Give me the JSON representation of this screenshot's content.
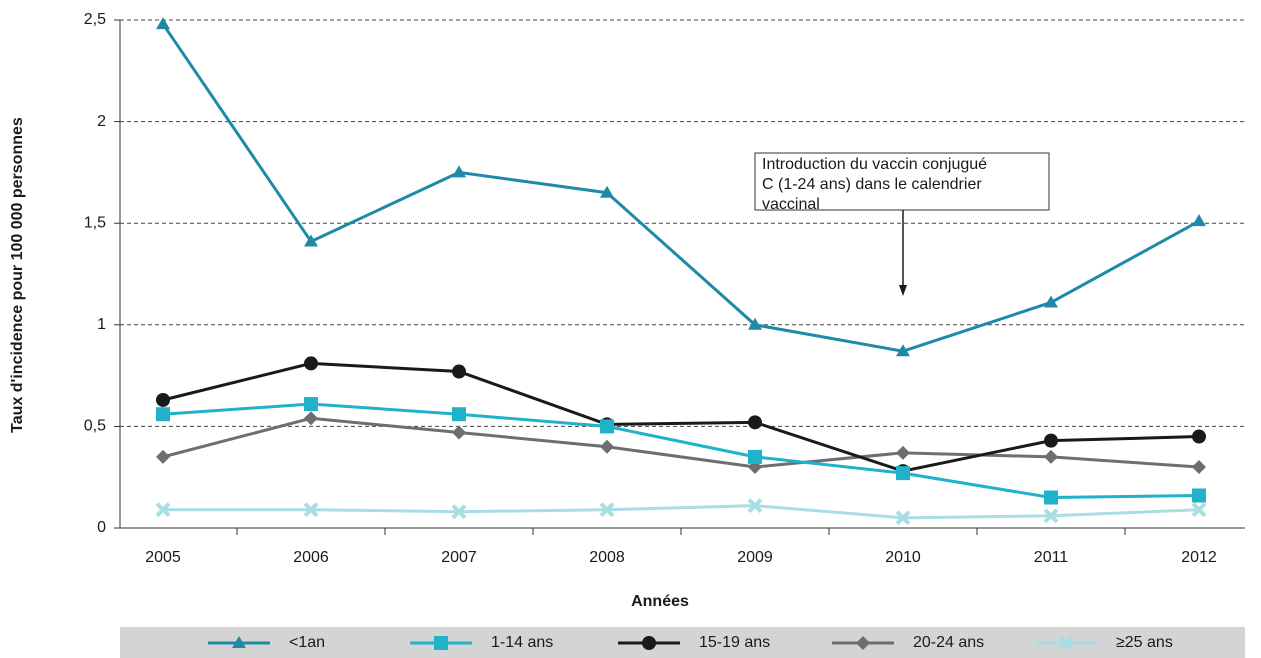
{
  "chart_data": {
    "type": "line",
    "y_label": "Taux d'incidence pour 100 000 personnes",
    "x_label": "Années",
    "categories": [
      "2005",
      "2006",
      "2007",
      "2008",
      "2009",
      "2010",
      "2011",
      "2012"
    ],
    "series": [
      {
        "name": "<1an",
        "color": "#1f8aa8",
        "marker": "triangle",
        "values": [
          2.48,
          1.41,
          1.75,
          1.65,
          1.0,
          0.87,
          1.11,
          1.51
        ]
      },
      {
        "name": "1-14 ans",
        "color": "#1fb2c8",
        "marker": "square",
        "values": [
          0.56,
          0.61,
          0.56,
          0.5,
          0.35,
          0.27,
          0.15,
          0.16
        ]
      },
      {
        "name": "15-19 ans",
        "color": "#1a1a1a",
        "marker": "circle",
        "values": [
          0.63,
          0.81,
          0.77,
          0.51,
          0.52,
          0.28,
          0.43,
          0.45
        ]
      },
      {
        "name": "20-24 ans",
        "color": "#6d6e71",
        "marker": "diamond",
        "values": [
          0.35,
          0.54,
          0.47,
          0.4,
          0.3,
          0.37,
          0.35,
          0.3
        ]
      },
      {
        "name": "≥25 ans",
        "color": "#a9dde4",
        "marker": "cross",
        "values": [
          0.09,
          0.09,
          0.08,
          0.09,
          0.11,
          0.05,
          0.06,
          0.09
        ]
      }
    ],
    "ylim": [
      0,
      2.5
    ],
    "yticks": [
      0,
      {
        "value": 0.5,
        "label": "0,5"
      },
      1,
      {
        "value": 1.5,
        "label": "1,5"
      },
      2,
      {
        "value": 2.5,
        "label": "2,5"
      }
    ],
    "grid": true,
    "legend": "bottom",
    "annotation": {
      "lines": [
        "Introduction du vaccin conjugué",
        "C (1-24 ans) dans le calendrier",
        "vaccinal"
      ],
      "category": "2010"
    }
  }
}
